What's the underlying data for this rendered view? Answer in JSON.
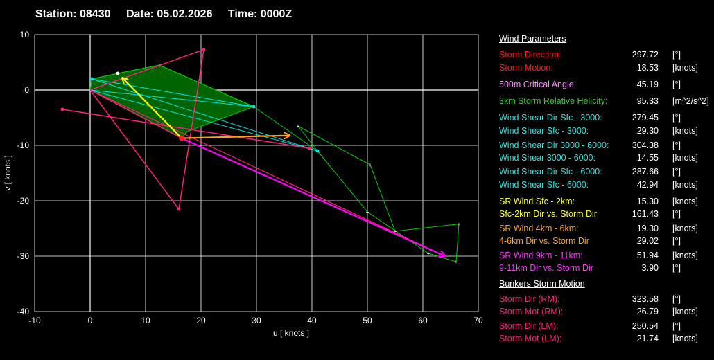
{
  "header": {
    "station": "Station: 08430",
    "date": "Date: 05.02.2026",
    "time": "Time: 0000Z"
  },
  "chart_data": {
    "type": "hodograph",
    "xlabel": "u  [ knots ]",
    "ylabel": "v  [ knots ]",
    "xlim": [
      -10,
      70
    ],
    "ylim": [
      -40,
      10
    ],
    "xticks": [
      -10,
      0,
      10,
      20,
      30,
      40,
      50,
      60,
      70
    ],
    "yticks": [
      10,
      0,
      -10,
      -20,
      -30,
      -40
    ],
    "grid": true,
    "colors": {
      "background": "#000000",
      "grid": "#ffffff",
      "hodograph": "#00d000",
      "helicity_fill": "#006400",
      "shear": "#00e5e5",
      "bunkers": "#ff1f7a",
      "sr_low": "#ffff00",
      "sr_mid": "#ff9f1c",
      "sr_high": "#ff00ff"
    },
    "series": [
      {
        "kind": "hodograph_trace",
        "points": [
          [
            0,
            0
          ],
          [
            0.3,
            2
          ],
          [
            5,
            3
          ],
          [
            12.5,
            4.5
          ],
          [
            29.5,
            -3
          ],
          [
            41,
            -11
          ],
          [
            37.5,
            -6.5
          ],
          [
            50.5,
            -13.5
          ],
          [
            55,
            -25.5
          ],
          [
            66.5,
            -24.2
          ],
          [
            66,
            -31
          ],
          [
            61,
            -29.5
          ],
          [
            50,
            -22
          ],
          [
            41,
            -11
          ]
        ]
      },
      {
        "kind": "helicity_area",
        "points": [
          [
            0.3,
            2
          ],
          [
            5,
            3
          ],
          [
            12.5,
            4.5
          ],
          [
            29.5,
            -3
          ],
          [
            17.5,
            -7.5
          ],
          [
            16.5,
            -8.7
          ],
          [
            0,
            0
          ]
        ]
      },
      {
        "kind": "shear_vectors",
        "points": [
          [
            0.3,
            2
          ],
          [
            29.5,
            -3
          ],
          [
            0.3,
            2
          ],
          [
            41,
            -11
          ],
          [
            0,
            0
          ],
          [
            29.5,
            -3
          ]
        ]
      },
      {
        "kind": "bunkers_lines",
        "segments": [
          [
            [
              0,
              0
            ],
            [
              20.5,
              7.3
            ]
          ],
          [
            [
              0,
              0
            ],
            [
              16,
              -21.5
            ]
          ],
          [
            [
              16,
              -21.5
            ],
            [
              20.5,
              7.3
            ]
          ],
          [
            [
              -5,
              -3.5
            ],
            [
              39.5,
              -10.5
            ]
          ],
          [
            [
              0,
              0
            ],
            [
              16.5,
              -8.7
            ]
          ],
          [
            [
              0,
              0
            ],
            [
              64,
              -30
            ]
          ]
        ]
      },
      {
        "kind": "sr_vectors",
        "vectors": [
          {
            "name": "sr_low",
            "from": [
              16.5,
              -8.7
            ],
            "to": [
              5.8,
              2.2
            ]
          },
          {
            "name": "sr_mid",
            "from": [
              16.5,
              -8.7
            ],
            "to": [
              36,
              -8.2
            ]
          },
          {
            "name": "sr_high",
            "from": [
              16.5,
              -8.7
            ],
            "to": [
              64,
              -30
            ]
          }
        ]
      },
      {
        "kind": "markers",
        "points": [
          {
            "u": 16.5,
            "v": -8.7,
            "color": "#ff1f1f"
          },
          {
            "u": 20.5,
            "v": 7.3,
            "color": "#ff1f7a"
          },
          {
            "u": 16,
            "v": -21.5,
            "color": "#ff1f7a"
          },
          {
            "u": -5,
            "v": -3.5,
            "color": "#ff1f7a"
          },
          {
            "u": 39.5,
            "v": -10.5,
            "color": "#ff1f7a"
          },
          {
            "u": 0.3,
            "v": 2,
            "color": "#00e5e5"
          },
          {
            "u": 29.5,
            "v": -3,
            "color": "#00e5e5"
          },
          {
            "u": 41,
            "v": -11,
            "color": "#00e5e5"
          },
          {
            "u": 5,
            "v": 3,
            "color": "#ffffff"
          }
        ]
      }
    ]
  },
  "panel": {
    "wind_heading": "Wind Parameters",
    "bunkers_heading": "Bunkers Storm Motion",
    "rows": [
      {
        "label": "Storm Direction:",
        "value": "297.72",
        "unit": "[°]",
        "color": "#ff1a1a"
      },
      {
        "label": "Storm Motion:",
        "value": "18.53",
        "unit": "[knots]",
        "color": "#ff1a1a"
      },
      {
        "label": "500m Critical Angle:",
        "value": "45.19",
        "unit": "[°]",
        "color": "#ff80ff"
      },
      {
        "label": "3km Storm Relative Helicity:",
        "value": "95.33",
        "unit": "[m^2/s^2]",
        "color": "#33cc33"
      },
      {
        "label": "Wind Shear Dir Sfc - 3000:",
        "value": "279.45",
        "unit": "[°]",
        "color": "#33e0e0"
      },
      {
        "label": "Wind Shear Sfc - 3000:",
        "value": "29.30",
        "unit": "[knots]",
        "color": "#33e0e0"
      },
      {
        "label": "Wind Shear Dir 3000 - 6000:",
        "value": "304.38",
        "unit": "[°]",
        "color": "#33e0e0"
      },
      {
        "label": "Wind Shear 3000 - 6000:",
        "value": "14.55",
        "unit": "[knots]",
        "color": "#33e0e0"
      },
      {
        "label": "Wind Shear Dir Sfc - 6000:",
        "value": "287.66",
        "unit": "[°]",
        "color": "#33e0e0"
      },
      {
        "label": "Wind Shear Sfc - 6000:",
        "value": "42.94",
        "unit": "[knots]",
        "color": "#33e0e0"
      },
      {
        "label": "SR Wind Sfc - 2km:",
        "value": "15.30",
        "unit": "[knots]",
        "color": "#ffff33"
      },
      {
        "label": "Sfc-2km Dir vs. Storm Dir",
        "value": "161.43",
        "unit": "[°]",
        "color": "#ffff33"
      },
      {
        "label": "SR Wind 4km - 6km:",
        "value": "19.30",
        "unit": "[knots]",
        "color": "#ff9f1c"
      },
      {
        "label": "4-6km Dir vs. Storm Dir",
        "value": "29.02",
        "unit": "[°]",
        "color": "#ff9f1c"
      },
      {
        "label": "SR Wind 9km - 11km:",
        "value": "51.94",
        "unit": "[knots]",
        "color": "#ff33ff"
      },
      {
        "label": "9-11km Dir vs. Storm Dir",
        "value": "3.90",
        "unit": "[°]",
        "color": "#ff33ff"
      },
      {
        "label": "Storm Dir (RM):",
        "value": "323.58",
        "unit": "[°]",
        "color": "#ff1f7a"
      },
      {
        "label": "Storm Mot (RM):",
        "value": "26.79",
        "unit": "[knots]",
        "color": "#ff1f7a"
      },
      {
        "label": "Storm Dir (LM):",
        "value": "250.54",
        "unit": "[°]",
        "color": "#ff1f7a"
      },
      {
        "label": "Storm Mot (LM):",
        "value": "21.74",
        "unit": "[knots]",
        "color": "#ff1f7a"
      }
    ]
  }
}
